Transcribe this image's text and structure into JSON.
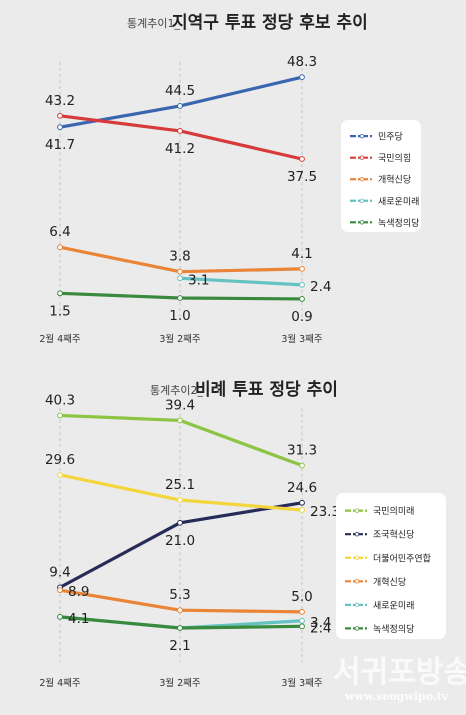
{
  "chart_data": [
    {
      "type": "line",
      "title_prefix": "통계추이1_",
      "title": "지역구 투표 정당 후보 추이",
      "categories": [
        "2월 4째주",
        "3월 2째주",
        "3월 3째주"
      ],
      "series": [
        {
          "name": "더불어민주당",
          "legend_label": "민주당",
          "color": "#3a66b0",
          "values": [
            41.7,
            44.5,
            48.3
          ],
          "labels": [
            "41.7",
            "44.5",
            "48.3"
          ],
          "label_pos": [
            "below",
            "above",
            "above"
          ]
        },
        {
          "name": "국민의힘",
          "legend_label": "국민의힘",
          "color": "#d63a3a",
          "values": [
            43.2,
            41.2,
            37.5
          ],
          "labels": [
            "43.2",
            "41.2",
            "37.5"
          ],
          "label_pos": [
            "above",
            "below",
            "below"
          ]
        },
        {
          "name": "개혁신당",
          "legend_label": "개혁신당",
          "color": "#ea8437",
          "values": [
            6.4,
            3.8,
            4.1
          ],
          "labels": [
            "6.4",
            "3.8",
            "4.1"
          ],
          "label_pos": [
            "above",
            "above",
            "above"
          ]
        },
        {
          "name": "새로운미래",
          "legend_label": "새로운미래",
          "color": "#66c2c2",
          "values": [
            null,
            3.1,
            2.4
          ],
          "labels": [
            "",
            "3.1",
            "2.4"
          ],
          "label_pos": [
            "above",
            "right",
            "right"
          ]
        },
        {
          "name": "녹색정의당",
          "legend_label": "녹색정의당",
          "color": "#3a8a3e",
          "values": [
            1.5,
            1.0,
            0.9
          ],
          "labels": [
            "1.5",
            "1.0",
            "0.9"
          ],
          "label_pos": [
            "below",
            "below",
            "below"
          ]
        }
      ]
    },
    {
      "type": "line",
      "title_prefix": "통계추이2_",
      "title": "비례 투표 정당 추이",
      "categories": [
        "2월 4째주",
        "3월 2째주",
        "3월 3째주"
      ],
      "series": [
        {
          "name": "국민의미래",
          "legend_label": "국민의미래",
          "color": "#8cc443",
          "values": [
            40.3,
            39.4,
            31.3
          ],
          "labels": [
            "40.3",
            "39.4",
            "31.3"
          ],
          "label_pos": [
            "above",
            "above",
            "above"
          ]
        },
        {
          "name": "조국혁신당",
          "legend_label": "조국혁신당",
          "color": "#262c57",
          "values": [
            9.4,
            21.0,
            24.6
          ],
          "labels": [
            "9.4",
            "21.0",
            "24.6"
          ],
          "label_pos": [
            "above",
            "below",
            "above"
          ]
        },
        {
          "name": "더불어민주연합",
          "legend_label": "더불어민주연합",
          "color": "#f2d63c",
          "values": [
            29.6,
            25.1,
            23.3
          ],
          "labels": [
            "29.6",
            "25.1",
            "23.3"
          ],
          "label_pos": [
            "above",
            "above",
            "right"
          ]
        },
        {
          "name": "개혁신당",
          "legend_label": "개혁신당",
          "color": "#ea8437",
          "values": [
            8.9,
            5.3,
            5.0
          ],
          "labels": [
            "8.9",
            "5.3",
            "5.0"
          ],
          "label_pos": [
            "right",
            "above",
            "above"
          ]
        },
        {
          "name": "새로운미래",
          "legend_label": "새로운미래",
          "color": "#66c2c2",
          "values": [
            4.1,
            2.1,
            3.4
          ],
          "labels": [
            "",
            "",
            "3.4"
          ],
          "label_pos": [
            "right",
            "below",
            "right"
          ]
        },
        {
          "name": "녹색정의당",
          "legend_label": "녹색정의당",
          "color": "#3a8a3e",
          "values": [
            4.1,
            2.1,
            2.4
          ],
          "labels": [
            "4.1",
            "2.1",
            "2.4"
          ],
          "label_pos": [
            "right",
            "below",
            "right"
          ]
        }
      ]
    }
  ],
  "watermark": {
    "name": "서귀포방송",
    "url": "www.seogwipo.tv"
  }
}
